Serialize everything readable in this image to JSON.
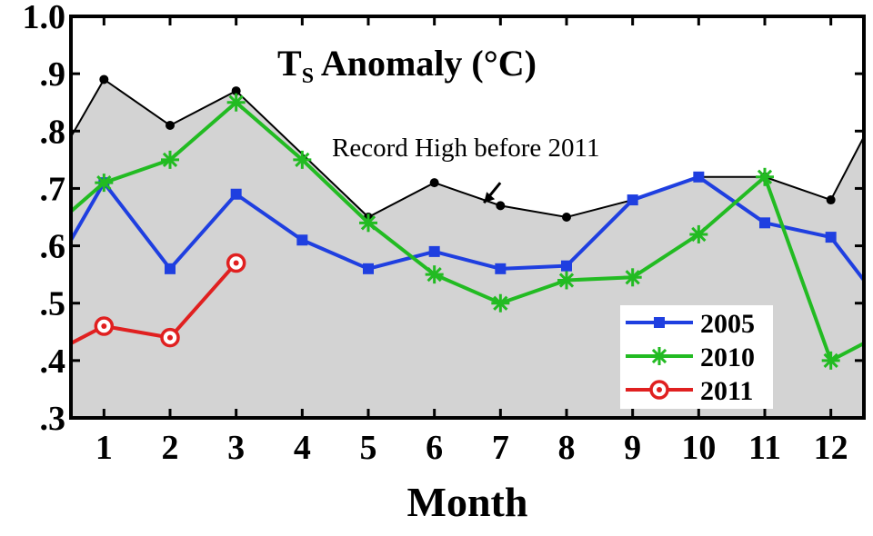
{
  "chart_data": {
    "type": "line",
    "title": "T",
    "title_subscript": "S",
    "title_suffix": " Anomaly (°C)",
    "xlabel": "Month",
    "ylabel": "",
    "x_ticks": [
      1,
      2,
      3,
      4,
      5,
      6,
      7,
      8,
      9,
      10,
      11,
      12
    ],
    "x_tick_labels": [
      "1",
      "2",
      "3",
      "4",
      "5",
      "6",
      "7",
      "8",
      "9",
      "10",
      "11",
      "12"
    ],
    "xlim": [
      0.5,
      12.5
    ],
    "ylim": [
      0.3,
      1.0
    ],
    "y_ticks": [
      0.3,
      0.4,
      0.5,
      0.6,
      0.7,
      0.8,
      0.9,
      1.0
    ],
    "y_tick_labels": [
      ".3",
      ".4",
      ".5",
      ".6",
      ".7",
      ".8",
      ".9",
      "1.0"
    ],
    "grid": false,
    "legend_position": "bottom-right",
    "record_high": {
      "x": [
        0.5,
        1,
        2,
        3,
        5,
        6,
        7,
        8,
        9,
        10,
        11,
        12,
        12.5
      ],
      "values": [
        0.79,
        0.89,
        0.81,
        0.87,
        0.65,
        0.71,
        0.67,
        0.65,
        0.68,
        0.72,
        0.72,
        0.68,
        0.79
      ],
      "marker": "dot",
      "color": "#000000",
      "fill": "#d3d3d3"
    },
    "annotation": {
      "text": "Record High before 2011",
      "arrow_to": [
        6.75,
        0.675
      ]
    },
    "series": [
      {
        "name": "2005",
        "x": [
          0.5,
          1,
          2,
          3,
          4,
          5,
          6,
          7,
          8,
          9,
          10,
          11,
          12,
          12.5
        ],
        "values": [
          0.61,
          0.71,
          0.56,
          0.69,
          0.61,
          0.56,
          0.59,
          0.56,
          0.565,
          0.68,
          0.72,
          0.64,
          0.615,
          0.54
        ],
        "color": "#1f3fe0",
        "marker": "square"
      },
      {
        "name": "2010",
        "x": [
          0.5,
          1,
          2,
          3,
          4,
          5,
          6,
          7,
          8,
          9,
          10,
          11,
          12,
          12.5
        ],
        "values": [
          0.66,
          0.71,
          0.75,
          0.85,
          0.75,
          0.64,
          0.55,
          0.5,
          0.54,
          0.545,
          0.62,
          0.72,
          0.4,
          0.43
        ],
        "color": "#22bb22",
        "marker": "star"
      },
      {
        "name": "2011",
        "x": [
          0.5,
          1,
          2,
          3
        ],
        "values": [
          0.43,
          0.46,
          0.44,
          0.57
        ],
        "color": "#e02020",
        "marker": "circle"
      }
    ]
  }
}
